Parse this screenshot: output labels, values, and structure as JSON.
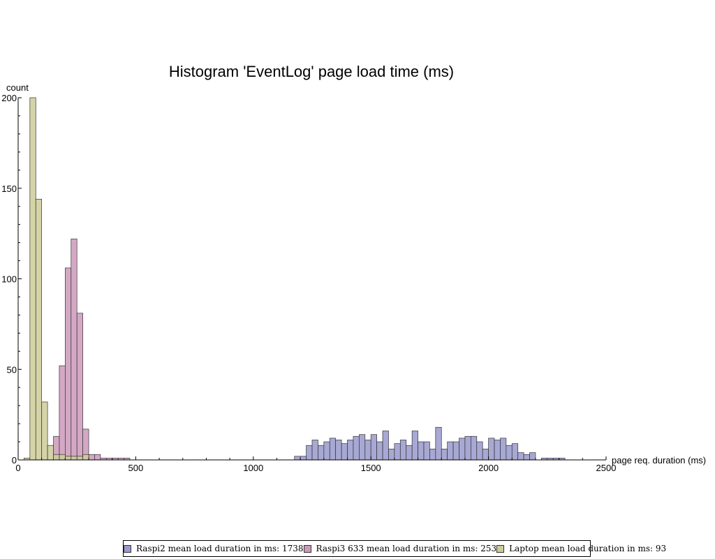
{
  "chart_data": {
    "type": "bar",
    "title": "Histogram 'EventLog' page load time (ms)",
    "xlabel": "page req. duration (ms)",
    "ylabel": "count",
    "xlim": [
      0,
      2500
    ],
    "ylim": [
      0,
      200
    ],
    "xticks": [
      0,
      500,
      1000,
      1500,
      2000,
      2500
    ],
    "yticks": [
      0,
      50,
      100,
      150,
      200
    ],
    "bin_width": 25,
    "series": [
      {
        "name": "Raspi2 mean load duration in ms: 1738",
        "color": "#9999cc",
        "bin_starts": [
          1175,
          1200,
          1225,
          1250,
          1275,
          1300,
          1325,
          1350,
          1375,
          1400,
          1425,
          1450,
          1475,
          1500,
          1525,
          1550,
          1575,
          1600,
          1625,
          1650,
          1675,
          1700,
          1725,
          1750,
          1775,
          1800,
          1825,
          1850,
          1875,
          1900,
          1925,
          1950,
          1975,
          2000,
          2025,
          2050,
          2075,
          2100,
          2125,
          2150,
          2175,
          2200,
          2225,
          2250,
          2275,
          2300,
          2325,
          2350,
          2375,
          2400
        ],
        "values": [
          2,
          2,
          8,
          11,
          8,
          10,
          12,
          11,
          9,
          11,
          13,
          14,
          11,
          14,
          10,
          16,
          6,
          9,
          11,
          8,
          16,
          10,
          10,
          6,
          18,
          6,
          10,
          10,
          12,
          13,
          13,
          10,
          6,
          12,
          11,
          12,
          8,
          9,
          4,
          3,
          4,
          0,
          1,
          1,
          1,
          1,
          0,
          0,
          0,
          0
        ]
      },
      {
        "name": "Raspi3 633 mean load duration in ms: 253",
        "color": "#cc99bb",
        "bin_starts": [
          150,
          175,
          200,
          225,
          250,
          275,
          300,
          325,
          350,
          375,
          400,
          425,
          450
        ],
        "values": [
          13,
          52,
          106,
          122,
          81,
          17,
          3,
          3,
          1,
          1,
          1,
          1,
          1
        ]
      },
      {
        "name": "Laptop mean load duration in ms: 93",
        "color": "#cccc99",
        "bin_starts": [
          25,
          50,
          75,
          100,
          125,
          150,
          175,
          200,
          225,
          250,
          275
        ],
        "values": [
          1,
          200,
          144,
          32,
          8,
          3,
          3,
          2,
          2,
          2,
          3
        ]
      }
    ],
    "legend_position": "bottom-center"
  }
}
